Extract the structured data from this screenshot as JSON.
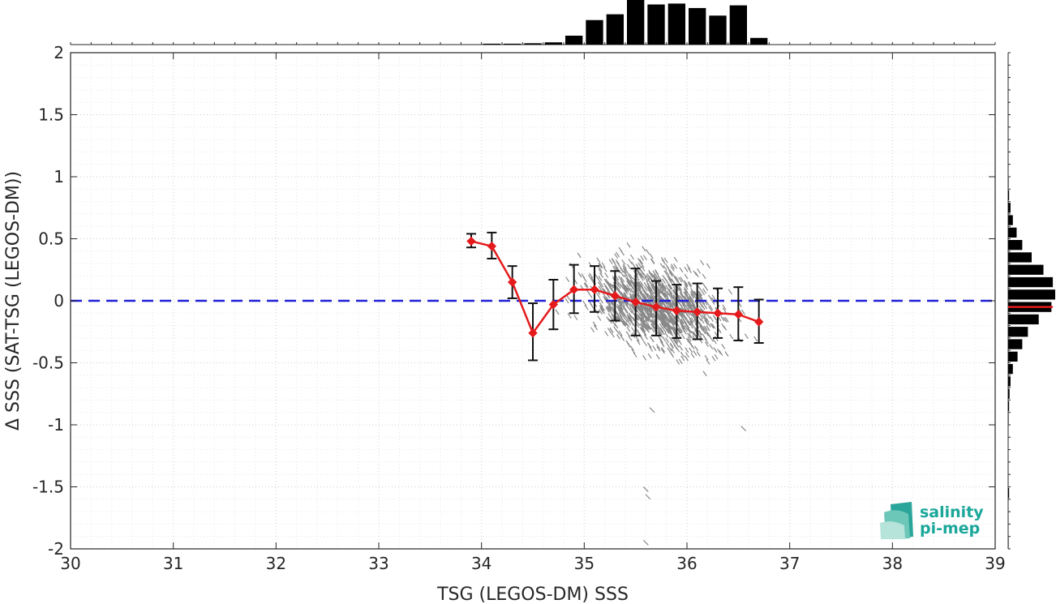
{
  "chart_data": {
    "type": "scatter",
    "title": "",
    "xlabel": "TSG (LEGOS-DM) SSS",
    "ylabel": "Δ SSS (SAT-TSG (LEGOS-DM))",
    "xlim": [
      30,
      39
    ],
    "ylim": [
      -2,
      2
    ],
    "x_ticks": [
      "30",
      "31",
      "32",
      "33",
      "34",
      "35",
      "36",
      "37",
      "38",
      "39"
    ],
    "y_ticks": [
      "2",
      "1.5",
      "1",
      "0.5",
      "0",
      "-0.5",
      "-1",
      "-1.5",
      "-2"
    ],
    "grid": true,
    "reference_line": {
      "y": 0,
      "style": "dashed",
      "color": "#1f1fd6"
    },
    "binned_mean": {
      "color": "#e41a1c",
      "x": [
        33.9,
        34.1,
        34.3,
        34.5,
        34.7,
        34.9,
        35.1,
        35.3,
        35.5,
        35.7,
        35.9,
        36.1,
        36.3,
        36.5,
        36.7
      ],
      "y": [
        0.48,
        0.44,
        0.15,
        -0.26,
        -0.03,
        0.09,
        0.09,
        0.04,
        -0.01,
        -0.05,
        -0.08,
        -0.09,
        -0.1,
        -0.11,
        -0.17
      ],
      "err_low": [
        0.43,
        0.34,
        0.02,
        -0.48,
        -0.23,
        -0.1,
        -0.09,
        -0.16,
        -0.28,
        -0.28,
        -0.3,
        -0.31,
        -0.3,
        -0.32,
        -0.34
      ],
      "err_high": [
        0.54,
        0.55,
        0.28,
        -0.02,
        0.17,
        0.29,
        0.28,
        0.24,
        0.26,
        0.16,
        0.13,
        0.14,
        0.1,
        0.11,
        0.01
      ]
    },
    "scatter_cloud": {
      "color": "#888888",
      "x_center": 35.7,
      "x_spread": 0.45,
      "x_min": 34.65,
      "x_max": 36.7,
      "y_spread": 0.22
    },
    "outliers": [
      {
        "x": 35.6,
        "y": -1.52
      },
      {
        "x": 35.62,
        "y": -1.58
      },
      {
        "x": 35.6,
        "y": -1.95
      },
      {
        "x": 36.55,
        "y": -1.03
      },
      {
        "x": 35.66,
        "y": -0.88
      }
    ],
    "top_histogram": {
      "bin_start": 34.0,
      "bin_width": 0.2,
      "counts": [
        0.02,
        0.02,
        0.03,
        0.05,
        0.2,
        0.55,
        0.68,
        1.0,
        0.9,
        0.92,
        0.82,
        0.65,
        0.88,
        0.15
      ]
    },
    "right_histogram": {
      "bin_start": -2.0,
      "bin_width": 0.1,
      "counts": [
        0.01,
        0.0,
        0.0,
        0.0,
        0.02,
        0.0,
        0.0,
        0.0,
        0.0,
        0.0,
        0.01,
        0.02,
        0.03,
        0.05,
        0.1,
        0.2,
        0.3,
        0.42,
        0.65,
        0.92,
        1.0,
        0.95,
        0.75,
        0.5,
        0.3,
        0.18,
        0.1,
        0.05,
        0.02,
        0.01
      ],
      "mean_marker": -0.05,
      "mean_color": "#e41a1c"
    }
  },
  "logo": {
    "line1": "salinity",
    "line2": "pi-mep"
  }
}
